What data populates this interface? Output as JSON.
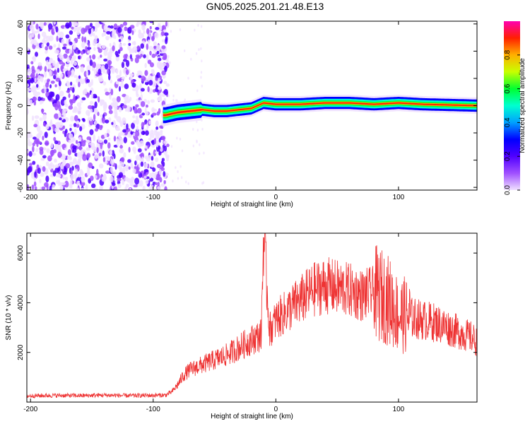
{
  "title": "GN05.2025.201.21.48.E13",
  "colors": {
    "snr_line": "#ee3333",
    "cmap": [
      "#f0e0ff",
      "#a050ff",
      "#5000ff",
      "#0000ff",
      "#00a0ff",
      "#00ffd0",
      "#00ff30",
      "#c8ff00",
      "#ffb000",
      "#ff2000",
      "#ff00b0"
    ]
  },
  "chart_data": [
    {
      "type": "heatmap",
      "xlabel": "Height of straight line (km)",
      "ylabel": "Frequency (Hz)",
      "xlim": [
        -203,
        164
      ],
      "ylim": [
        -62,
        62
      ],
      "xticks": [
        -200,
        -100,
        0,
        100
      ],
      "yticks": [
        -60,
        -40,
        -20,
        0,
        20,
        40,
        60
      ],
      "colorbar": {
        "label": "Normalized spectral amplitude",
        "range": [
          0,
          1
        ],
        "ticks": [
          "0.0",
          "0.2",
          "0.4",
          "0.6",
          "0.8"
        ]
      },
      "description_series": [
        {
          "name": "noise",
          "x_range": [
            -203,
            -88
          ],
          "y_range": [
            -62,
            62
          ]
        },
        {
          "name": "signal band center",
          "x": [
            -90,
            -80,
            -70,
            -60,
            -50,
            -40,
            -30,
            -20,
            -10,
            0,
            20,
            40,
            60,
            80,
            100,
            120,
            164
          ],
          "y": [
            -7,
            -5,
            -4,
            -3,
            -4,
            -4,
            -3,
            -2,
            2,
            1,
            1,
            2,
            2,
            1,
            2,
            1,
            0
          ]
        }
      ]
    },
    {
      "type": "line",
      "xlabel": "Height of straight line (km)",
      "ylabel": "SNR (10 * v/v)",
      "xlim": [
        -203,
        164
      ],
      "ylim": [
        0,
        6800
      ],
      "xticks": [
        -200,
        -100,
        0,
        100
      ],
      "yticks": [
        2000,
        4000,
        6000
      ],
      "x": [
        -203,
        -180,
        -160,
        -140,
        -120,
        -100,
        -90,
        -85,
        -80,
        -75,
        -70,
        -60,
        -50,
        -40,
        -30,
        -20,
        -12,
        -10,
        -5,
        0,
        10,
        20,
        30,
        40,
        50,
        60,
        70,
        80,
        90,
        95,
        100,
        105,
        110,
        120,
        130,
        140,
        150,
        160,
        164
      ],
      "values": [
        250,
        270,
        260,
        280,
        260,
        270,
        280,
        400,
        700,
        1100,
        1300,
        1500,
        1700,
        1900,
        2200,
        2500,
        2700,
        6700,
        2900,
        3300,
        3700,
        4100,
        4500,
        4700,
        4600,
        4500,
        4300,
        4400,
        4200,
        3900,
        3500,
        3500,
        3400,
        3300,
        3200,
        3000,
        2800,
        2600,
        2400
      ]
    }
  ]
}
